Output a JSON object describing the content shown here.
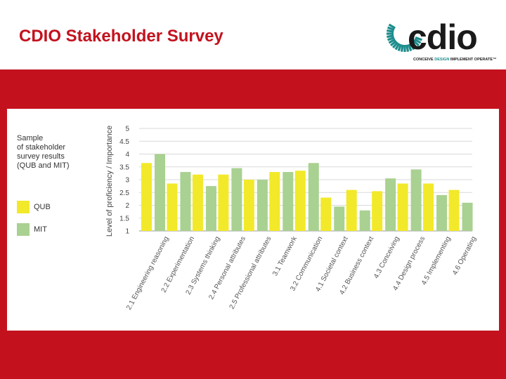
{
  "slide": {
    "title": "CDIO Stakeholder Survey",
    "band_color": "#c3121e"
  },
  "logo": {
    "word": "cdio",
    "tagline_part1": "CONCEIVE ",
    "tagline_part2": "DESIGN ",
    "tagline_part3": "IMPLEMENT OPERATE",
    "tagline_mark": "™",
    "ring_color": "#1c8c8c"
  },
  "legend": {
    "title_lines": [
      "Sample",
      "of stakeholder",
      "survey results",
      "(QUB and MIT)"
    ],
    "items": [
      {
        "label": "QUB",
        "color": "#f2e92a"
      },
      {
        "label": "MIT",
        "color": "#a9d191"
      }
    ]
  },
  "chart_data": {
    "type": "bar",
    "title": "",
    "xlabel": "",
    "ylabel": "Level of proficiency / Importance",
    "ylim": [
      1,
      5
    ],
    "yticks": [
      "1",
      "1.5",
      "2",
      "2.5",
      "3",
      "3.5",
      "4",
      "4.5",
      "5"
    ],
    "categories": [
      "2.1 Engineering reasoning",
      "2.2 Experimentation",
      "2.3 Systems thinking",
      "2.4 Personal attributes",
      "2.5 Professional attributes",
      "3.1 Teamwork",
      "3.2 Communication",
      "4.1 Societal context",
      "4.2 Business context",
      "4.3 Conceiving",
      "4.4 Design process",
      "4.5 Implementing",
      "4.6 Operating"
    ],
    "series": [
      {
        "name": "QUB",
        "color": "#f2e92a",
        "values": [
          3.65,
          2.85,
          3.2,
          3.2,
          3.0,
          3.3,
          3.35,
          2.3,
          2.6,
          2.55,
          2.85,
          2.85,
          2.6
        ]
      },
      {
        "name": "MIT",
        "color": "#a9d191",
        "values": [
          4.0,
          3.3,
          2.75,
          3.45,
          3.0,
          3.3,
          3.65,
          1.95,
          1.8,
          3.05,
          3.4,
          2.4,
          2.1
        ]
      }
    ],
    "grid": true
  }
}
